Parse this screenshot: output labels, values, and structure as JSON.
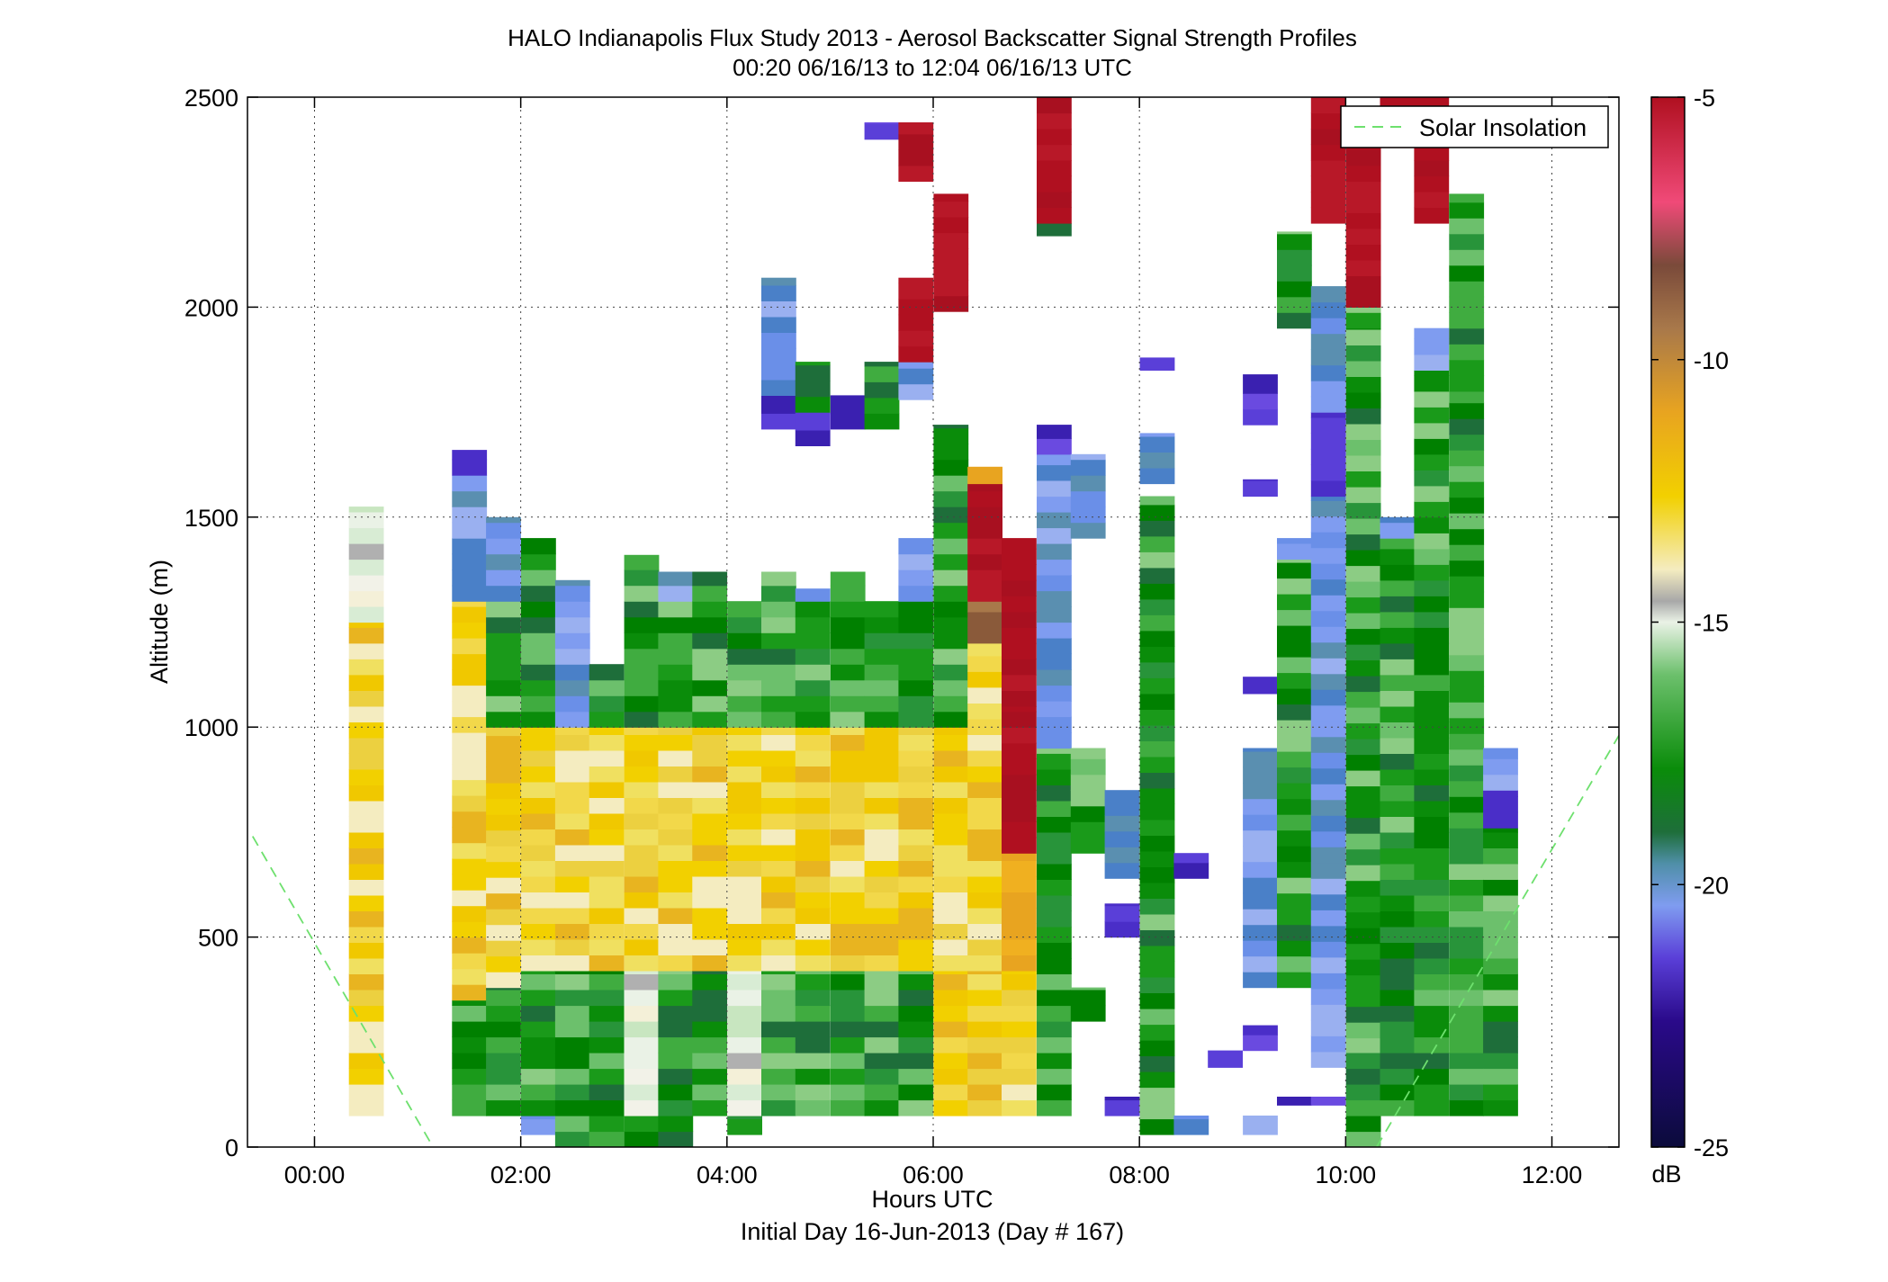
{
  "chart_data": {
    "type": "heatmap",
    "title": "HALO Indianapolis Flux Study 2013 - Aerosol Backscatter Signal Strength Profiles",
    "subtitle": "00:20 06/16/13 to 12:04 06/16/13  UTC",
    "xlabel": "Hours UTC",
    "xlabel2": "Initial Day 16-Jun-2013 (Day # 167)",
    "ylabel": "Altitude (m)",
    "x_unit": "hours UTC",
    "y_unit": "m",
    "xlim": [
      -0.65,
      12.65
    ],
    "ylim": [
      0,
      2500
    ],
    "x_ticks": [
      0,
      2,
      4,
      6,
      8,
      10,
      12
    ],
    "x_tick_labels": [
      "00:00",
      "02:00",
      "04:00",
      "06:00",
      "08:00",
      "10:00",
      "12:00"
    ],
    "y_ticks": [
      0,
      500,
      1000,
      1500,
      2000,
      2500
    ],
    "y_tick_labels": [
      "0",
      "500",
      "1000",
      "1500",
      "2000",
      "2500"
    ],
    "grid": true,
    "cell_width_hours": 0.3333,
    "cell_height_m": 37.5,
    "colorbar": {
      "label": "dB",
      "range": [
        -25,
        -5
      ],
      "ticks": [
        -25,
        -20,
        -15,
        -10,
        -5
      ],
      "tick_labels": [
        "-25",
        "-20",
        "-15",
        "-10",
        "-5"
      ]
    },
    "columns": [
      {
        "t": 0.5,
        "segments": [
          [
            75,
            1250,
            "yellow"
          ],
          [
            1250,
            1525,
            "white"
          ]
        ]
      },
      {
        "t": 1.5,
        "segments": [
          [
            75,
            350,
            "green"
          ],
          [
            350,
            1300,
            "yellow"
          ],
          [
            1300,
            1600,
            "blue"
          ],
          [
            1600,
            1660,
            "purple"
          ]
        ]
      },
      {
        "t": 1.83,
        "segments": [
          [
            75,
            380,
            "green"
          ],
          [
            380,
            1000,
            "yellow"
          ],
          [
            1000,
            1300,
            "green"
          ],
          [
            1300,
            1500,
            "blue"
          ]
        ]
      },
      {
        "t": 2.17,
        "segments": [
          [
            30,
            75,
            "blue"
          ],
          [
            75,
            420,
            "green"
          ],
          [
            420,
            1000,
            "yellow"
          ],
          [
            1000,
            1450,
            "green"
          ]
        ]
      },
      {
        "t": 2.5,
        "segments": [
          [
            0,
            75,
            "green"
          ],
          [
            75,
            420,
            "green"
          ],
          [
            420,
            1000,
            "yellow"
          ],
          [
            1000,
            1350,
            "blue"
          ]
        ]
      },
      {
        "t": 2.83,
        "segments": [
          [
            0,
            75,
            "green"
          ],
          [
            75,
            420,
            "green"
          ],
          [
            420,
            1000,
            "yellow"
          ],
          [
            1000,
            1150,
            "green"
          ]
        ]
      },
      {
        "t": 3.17,
        "segments": [
          [
            0,
            75,
            "green"
          ],
          [
            75,
            420,
            "white"
          ],
          [
            420,
            1000,
            "yellow"
          ],
          [
            1000,
            1410,
            "green"
          ]
        ]
      },
      {
        "t": 3.5,
        "segments": [
          [
            0,
            75,
            "green"
          ],
          [
            75,
            420,
            "green"
          ],
          [
            420,
            1000,
            "yellow"
          ],
          [
            1000,
            1300,
            "green"
          ],
          [
            1300,
            1370,
            "blue"
          ]
        ]
      },
      {
        "t": 3.83,
        "segments": [
          [
            75,
            420,
            "green"
          ],
          [
            420,
            1000,
            "yellow"
          ],
          [
            1000,
            1370,
            "green"
          ]
        ]
      },
      {
        "t": 4.17,
        "segments": [
          [
            30,
            75,
            "green"
          ],
          [
            75,
            420,
            "white"
          ],
          [
            420,
            1000,
            "yellow"
          ],
          [
            1000,
            1300,
            "green"
          ]
        ]
      },
      {
        "t": 4.5,
        "segments": [
          [
            75,
            420,
            "green"
          ],
          [
            420,
            1000,
            "yellow"
          ],
          [
            1000,
            1370,
            "green"
          ],
          [
            1710,
            1790,
            "purple"
          ],
          [
            1790,
            2070,
            "blue"
          ]
        ]
      },
      {
        "t": 4.83,
        "segments": [
          [
            75,
            420,
            "green"
          ],
          [
            420,
            1000,
            "yellow"
          ],
          [
            1000,
            1300,
            "green"
          ],
          [
            1300,
            1330,
            "blue"
          ],
          [
            1670,
            1750,
            "purple"
          ],
          [
            1750,
            1870,
            "green"
          ]
        ]
      },
      {
        "t": 5.17,
        "segments": [
          [
            75,
            420,
            "green"
          ],
          [
            420,
            1000,
            "yellow"
          ],
          [
            1000,
            1370,
            "green"
          ],
          [
            1710,
            1790,
            "purple"
          ]
        ]
      },
      {
        "t": 5.5,
        "segments": [
          [
            75,
            420,
            "green"
          ],
          [
            420,
            1000,
            "yellow"
          ],
          [
            1000,
            1300,
            "green"
          ],
          [
            1710,
            1870,
            "green"
          ],
          [
            2400,
            2440,
            "purple"
          ]
        ]
      },
      {
        "t": 5.83,
        "segments": [
          [
            75,
            420,
            "green"
          ],
          [
            420,
            1000,
            "yellow"
          ],
          [
            1000,
            1300,
            "green"
          ],
          [
            1300,
            1450,
            "blue"
          ],
          [
            1780,
            1870,
            "blue"
          ],
          [
            1870,
            2070,
            "darkred"
          ],
          [
            2300,
            2440,
            "darkred"
          ]
        ]
      },
      {
        "t": 6.17,
        "segments": [
          [
            75,
            420,
            "yellow"
          ],
          [
            420,
            1000,
            "yellow"
          ],
          [
            1000,
            1600,
            "green"
          ],
          [
            1600,
            1720,
            "green"
          ],
          [
            1990,
            2270,
            "darkred"
          ]
        ]
      },
      {
        "t": 6.5,
        "segments": [
          [
            75,
            420,
            "yellow"
          ],
          [
            420,
            1200,
            "yellow"
          ],
          [
            1200,
            1300,
            "brown"
          ],
          [
            1300,
            1580,
            "darkred"
          ],
          [
            1580,
            1620,
            "orange"
          ]
        ]
      },
      {
        "t": 6.83,
        "segments": [
          [
            75,
            420,
            "yellow"
          ],
          [
            420,
            700,
            "orange"
          ],
          [
            700,
            1050,
            "darkred"
          ],
          [
            1050,
            1450,
            "darkred"
          ]
        ]
      },
      {
        "t": 7.17,
        "segments": [
          [
            75,
            950,
            "green"
          ],
          [
            950,
            1650,
            "blue"
          ],
          [
            1650,
            1720,
            "purple"
          ],
          [
            2170,
            2200,
            "green"
          ],
          [
            2200,
            2500,
            "darkred"
          ]
        ]
      },
      {
        "t": 7.5,
        "segments": [
          [
            300,
            380,
            "green"
          ],
          [
            700,
            950,
            "green"
          ],
          [
            1450,
            1650,
            "blue"
          ]
        ]
      },
      {
        "t": 7.83,
        "segments": [
          [
            75,
            120,
            "purple"
          ],
          [
            500,
            580,
            "purple"
          ],
          [
            640,
            850,
            "blue"
          ]
        ]
      },
      {
        "t": 8.17,
        "segments": [
          [
            30,
            1550,
            "green"
          ],
          [
            1580,
            1700,
            "blue"
          ],
          [
            1850,
            1880,
            "purple"
          ]
        ]
      },
      {
        "t": 8.5,
        "segments": [
          [
            30,
            75,
            "blue"
          ],
          [
            640,
            700,
            "purple"
          ]
        ]
      },
      {
        "t": 8.83,
        "segments": [
          [
            190,
            230,
            "purple"
          ]
        ]
      },
      {
        "t": 9.17,
        "segments": [
          [
            30,
            75,
            "blue"
          ],
          [
            230,
            290,
            "purple"
          ],
          [
            380,
            950,
            "blue"
          ],
          [
            1080,
            1120,
            "purple"
          ],
          [
            1550,
            1590,
            "purple"
          ],
          [
            1720,
            1840,
            "purple"
          ]
        ]
      },
      {
        "t": 9.5,
        "segments": [
          [
            100,
            120,
            "purple"
          ],
          [
            380,
            1400,
            "green"
          ],
          [
            1400,
            1450,
            "blue"
          ],
          [
            1950,
            2180,
            "green"
          ]
        ]
      },
      {
        "t": 9.83,
        "segments": [
          [
            100,
            120,
            "purple"
          ],
          [
            190,
            1550,
            "blue"
          ],
          [
            1550,
            1750,
            "purple"
          ],
          [
            1750,
            2050,
            "blue"
          ],
          [
            2200,
            2500,
            "darkred"
          ]
        ]
      },
      {
        "t": 10.17,
        "segments": [
          [
            0,
            260,
            "green"
          ],
          [
            260,
            1950,
            "green"
          ],
          [
            1950,
            2000,
            "green"
          ],
          [
            2000,
            2460,
            "darkred"
          ]
        ]
      },
      {
        "t": 10.5,
        "segments": [
          [
            75,
            1450,
            "green"
          ],
          [
            1450,
            1500,
            "blue"
          ],
          [
            2380,
            2500,
            "darkred"
          ]
        ]
      },
      {
        "t": 10.83,
        "segments": [
          [
            75,
            1850,
            "green"
          ],
          [
            1850,
            1950,
            "blue"
          ],
          [
            2200,
            2500,
            "darkred"
          ]
        ]
      },
      {
        "t": 11.17,
        "segments": [
          [
            75,
            760,
            "green"
          ],
          [
            760,
            1800,
            "green"
          ],
          [
            1800,
            2270,
            "green"
          ]
        ]
      },
      {
        "t": 11.5,
        "segments": [
          [
            75,
            760,
            "green"
          ],
          [
            760,
            850,
            "purple"
          ],
          [
            850,
            950,
            "blue"
          ]
        ]
      }
    ],
    "solar_insolation": {
      "name": "Solar Insolation",
      "segments": [
        {
          "x": [
            -0.6,
            1.15
          ],
          "y": [
            740,
            0
          ]
        },
        {
          "x": [
            10.3,
            12.65
          ],
          "y": [
            0,
            980
          ]
        }
      ]
    },
    "legend": {
      "position": "top-right",
      "entries": [
        "Solar Insolation"
      ]
    }
  }
}
